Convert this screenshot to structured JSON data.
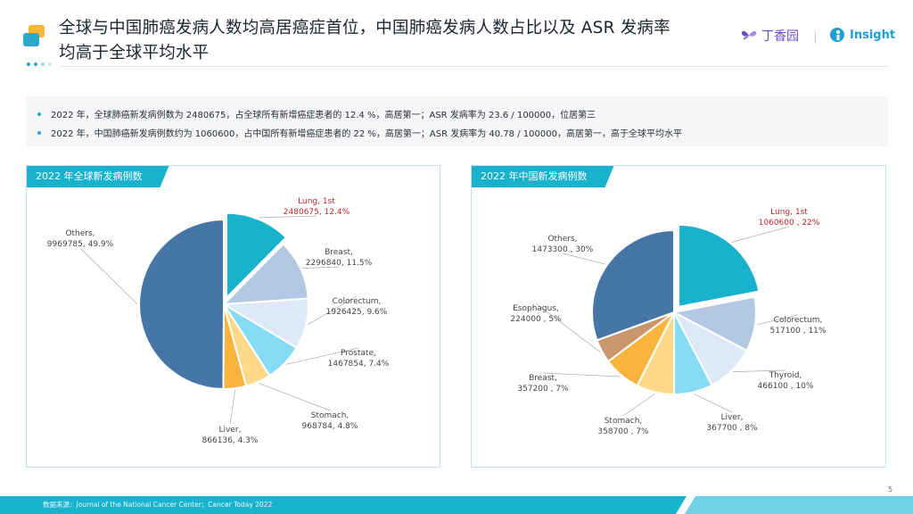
{
  "header": {
    "title_line1": "全球与中国肺癌发病人数均高居癌症首位，中国肺癌发病人数占比以及 ASR 发病率",
    "title_line2": "均高于全球平均水平",
    "brand1": "丁香园",
    "brand2": "Insight"
  },
  "summary": {
    "bullets": [
      "2022 年，全球肺癌新发病例数为 2480675，占全球所有新增癌症患者的 12.4 %，高居第一；ASR 发病率为 23.6 / 100000，位居第三",
      "2022 年，中国肺癌新发病例数约为 1060600，占中国所有新增癌症患者的 22 %，高居第一；ASR 发病率为 40.78 / 100000，高居第一，高于全球平均水平"
    ]
  },
  "panels": [
    {
      "title": "2022 年全球新发病例数"
    },
    {
      "title": "2022 年中国新发病例数"
    }
  ],
  "colors": {
    "accent": "#18b2cd",
    "highlight_label": "#c0272d"
  },
  "chart_data": [
    {
      "type": "pie",
      "title": "2022 年全球新发病例数",
      "slices": [
        {
          "name": "Lung, 1st",
          "value": 2480675,
          "label": "2480675, 12.4%",
          "color": "#18b2cd",
          "highlight": true
        },
        {
          "name": "Breast,",
          "value": 2296840,
          "label": "2296840, 11.5%",
          "color": "#b3c8e2"
        },
        {
          "name": "Colorectum,",
          "value": 1926425,
          "label": "1926425, 9.6%",
          "color": "#dde9f6"
        },
        {
          "name": "Prostate,",
          "value": 1467854,
          "label": "1467854, 7.4%",
          "color": "#86dcf5"
        },
        {
          "name": "Stomach,",
          "value": 968784,
          "label": "968784, 4.8%",
          "color": "#ffd98a"
        },
        {
          "name": "Liver,",
          "value": 866136,
          "label": "866136, 4.3%",
          "color": "#f8b43c"
        },
        {
          "name": "Others,",
          "value": 9969785,
          "label": "9969785, 49.9%",
          "color": "#4676a6"
        }
      ]
    },
    {
      "type": "pie",
      "title": "2022 年中国新发病例数",
      "slices": [
        {
          "name": "Lung, 1st",
          "value": 1060600,
          "label": "1060600 , 22%",
          "color": "#18b2cd",
          "highlight": true
        },
        {
          "name": "Colorectum,",
          "value": 517100,
          "label": "517100 , 11%",
          "color": "#b3c8e2"
        },
        {
          "name": "Thyroid,",
          "value": 466100,
          "label": "466100 , 10%",
          "color": "#dde9f6"
        },
        {
          "name": "Liver,",
          "value": 367700,
          "label": "367700 , 8%",
          "color": "#86dcf5"
        },
        {
          "name": "Stomach,",
          "value": 358700,
          "label": "358700 , 7%",
          "color": "#ffd98a"
        },
        {
          "name": "Breast,",
          "value": 357200,
          "label": "357200 , 7%",
          "color": "#f8b43c"
        },
        {
          "name": "Esophagus,",
          "value": 224000,
          "label": "224000 , 5%",
          "color": "#c8966a"
        },
        {
          "name": "Others,",
          "value": 1473300,
          "label": "1473300 , 30%",
          "color": "#4676a6"
        }
      ]
    }
  ],
  "footer": {
    "source": "数据来源：Journal of the National Cancer Center；Cancer Today 2022",
    "page": "5"
  }
}
